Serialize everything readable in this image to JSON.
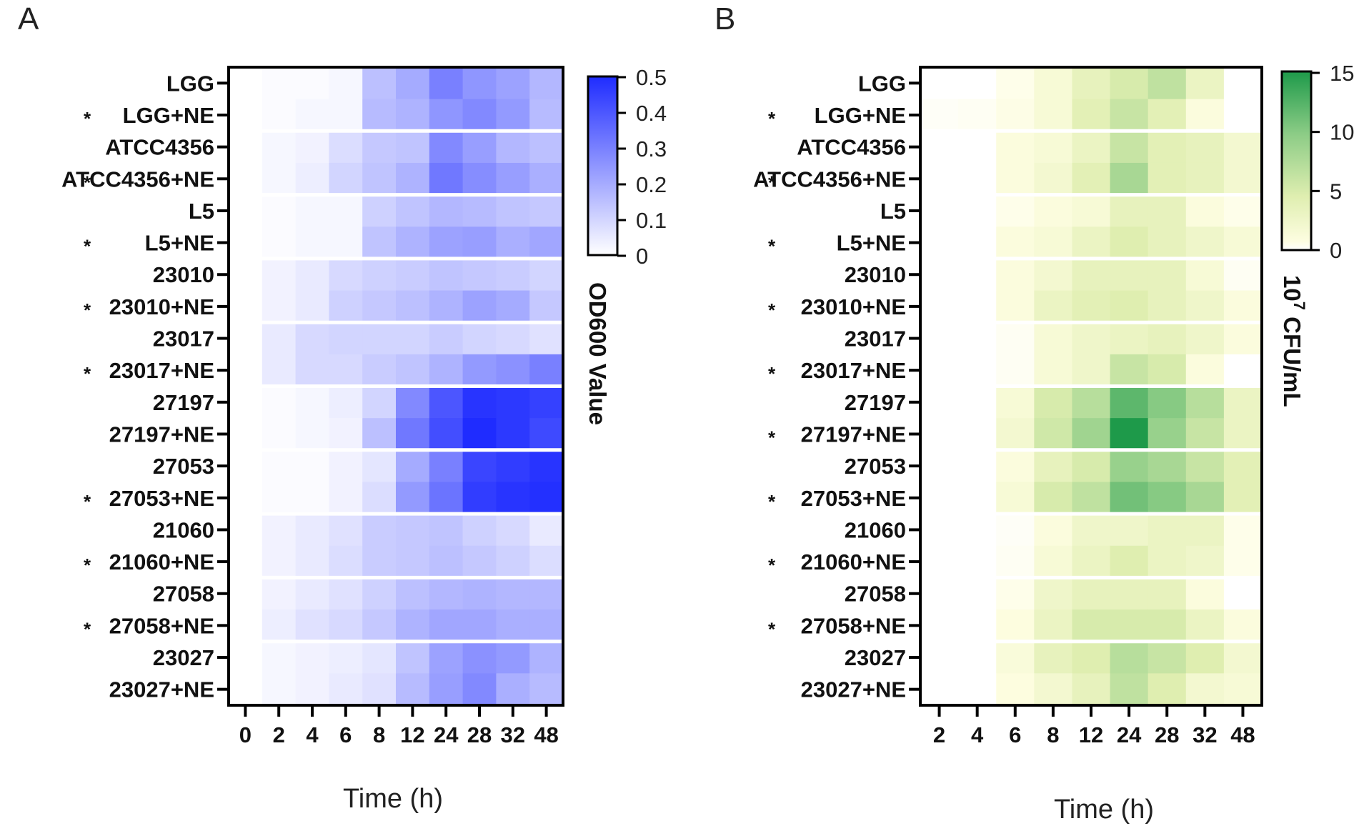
{
  "figure": {
    "panel_labels": [
      "A",
      "B"
    ]
  },
  "colors": {
    "blue_max": "#1f2cff",
    "green_max": "#1e9a4a",
    "green_mid": "#dfeeb0",
    "green_min": "#ffffff",
    "frame": "#000000",
    "separator": "#ffffff"
  },
  "chart_data": [
    {
      "type": "heatmap",
      "panel": "A",
      "xlabel": "Time (h)",
      "x": [
        "0",
        "2",
        "4",
        "6",
        "8",
        "12",
        "24",
        "28",
        "32",
        "48"
      ],
      "rows": [
        "LGG",
        "LGG+NE",
        "ATCC4356",
        "ATCC4356+NE",
        "L5",
        "L5+NE",
        "23010",
        "23010+NE",
        "23017",
        "23017+NE",
        "27197",
        "27197+NE",
        "27053",
        "27053+NE",
        "21060",
        "21060+NE",
        "27058",
        "27058+NE",
        "23027",
        "23027+NE"
      ],
      "significant": [
        false,
        true,
        false,
        true,
        false,
        true,
        false,
        true,
        false,
        true,
        false,
        false,
        false,
        true,
        false,
        true,
        false,
        true,
        false,
        false
      ],
      "star_symbol": "*",
      "colorbar": {
        "title": "OD600 Value",
        "min": 0,
        "max": 0.5,
        "ticks": [
          "0.5",
          "0.4",
          "0.3",
          "0.2",
          "0.1",
          "0"
        ]
      },
      "values": [
        [
          0.0,
          0.01,
          0.01,
          0.02,
          0.15,
          0.2,
          0.3,
          0.25,
          0.22,
          0.17
        ],
        [
          0.0,
          0.01,
          0.02,
          0.02,
          0.16,
          0.18,
          0.25,
          0.28,
          0.24,
          0.16
        ],
        [
          0.0,
          0.02,
          0.03,
          0.08,
          0.13,
          0.14,
          0.28,
          0.23,
          0.17,
          0.15
        ],
        [
          0.0,
          0.02,
          0.04,
          0.1,
          0.14,
          0.18,
          0.32,
          0.27,
          0.23,
          0.19
        ],
        [
          0.0,
          0.01,
          0.02,
          0.02,
          0.11,
          0.14,
          0.17,
          0.16,
          0.14,
          0.13
        ],
        [
          0.0,
          0.01,
          0.02,
          0.02,
          0.14,
          0.18,
          0.22,
          0.23,
          0.19,
          0.21
        ],
        [
          0.0,
          0.03,
          0.05,
          0.09,
          0.11,
          0.12,
          0.14,
          0.13,
          0.12,
          0.1
        ],
        [
          0.0,
          0.03,
          0.05,
          0.11,
          0.13,
          0.15,
          0.18,
          0.22,
          0.2,
          0.13
        ],
        [
          0.0,
          0.05,
          0.09,
          0.1,
          0.1,
          0.1,
          0.12,
          0.1,
          0.09,
          0.07
        ],
        [
          0.0,
          0.05,
          0.09,
          0.09,
          0.12,
          0.14,
          0.18,
          0.24,
          0.26,
          0.3
        ],
        [
          0.0,
          0.01,
          0.02,
          0.04,
          0.1,
          0.28,
          0.4,
          0.48,
          0.47,
          0.45
        ],
        [
          0.0,
          0.01,
          0.02,
          0.03,
          0.15,
          0.32,
          0.42,
          0.5,
          0.47,
          0.43
        ],
        [
          0.0,
          0.01,
          0.01,
          0.03,
          0.06,
          0.2,
          0.3,
          0.44,
          0.46,
          0.48
        ],
        [
          0.0,
          0.01,
          0.01,
          0.03,
          0.08,
          0.24,
          0.33,
          0.46,
          0.48,
          0.49
        ],
        [
          0.0,
          0.03,
          0.05,
          0.07,
          0.12,
          0.13,
          0.14,
          0.11,
          0.09,
          0.05
        ],
        [
          0.0,
          0.03,
          0.05,
          0.08,
          0.12,
          0.13,
          0.15,
          0.13,
          0.11,
          0.08
        ],
        [
          0.0,
          0.03,
          0.05,
          0.07,
          0.11,
          0.15,
          0.17,
          0.18,
          0.17,
          0.17
        ],
        [
          0.0,
          0.04,
          0.07,
          0.09,
          0.13,
          0.18,
          0.21,
          0.21,
          0.19,
          0.19
        ],
        [
          0.0,
          0.02,
          0.03,
          0.04,
          0.06,
          0.14,
          0.22,
          0.26,
          0.24,
          0.18
        ],
        [
          0.0,
          0.02,
          0.03,
          0.05,
          0.07,
          0.16,
          0.23,
          0.28,
          0.19,
          0.16
        ]
      ]
    },
    {
      "type": "heatmap",
      "panel": "B",
      "xlabel": "Time (h)",
      "x": [
        "2",
        "4",
        "6",
        "8",
        "12",
        "24",
        "28",
        "32",
        "48"
      ],
      "rows": [
        "LGG",
        "LGG+NE",
        "ATCC4356",
        "ATCC4356+NE",
        "L5",
        "L5+NE",
        "23010",
        "23010+NE",
        "23017",
        "23017+NE",
        "27197",
        "27197+NE",
        "27053",
        "27053+NE",
        "21060",
        "21060+NE",
        "27058",
        "27058+NE",
        "23027",
        "23027+NE"
      ],
      "significant": [
        false,
        true,
        false,
        true,
        false,
        true,
        false,
        true,
        false,
        true,
        false,
        true,
        false,
        true,
        false,
        true,
        false,
        true,
        false,
        false
      ],
      "star_symbol": "*",
      "colorbar": {
        "title_base": "10",
        "title_exp": "7",
        "title_rest": " CFU/mL",
        "min": 0,
        "max": 15,
        "ticks": [
          "15",
          "10",
          "5",
          "0"
        ]
      },
      "values": [
        [
          0.0,
          0.0,
          0.5,
          1.5,
          3.5,
          5.0,
          6.5,
          3.0,
          0.0
        ],
        [
          0.2,
          0.3,
          0.6,
          1.5,
          4.0,
          6.0,
          4.0,
          1.0,
          0.0
        ],
        [
          0.0,
          0.0,
          1.0,
          1.5,
          3.0,
          6.0,
          4.0,
          3.5,
          2.0
        ],
        [
          0.0,
          0.0,
          1.0,
          2.0,
          4.0,
          8.0,
          4.0,
          3.5,
          2.0
        ],
        [
          0.0,
          0.0,
          0.5,
          1.0,
          1.5,
          3.5,
          3.5,
          1.0,
          0.5
        ],
        [
          0.0,
          0.0,
          1.0,
          1.5,
          3.0,
          4.5,
          3.5,
          2.5,
          1.5
        ],
        [
          0.0,
          0.0,
          1.0,
          2.0,
          3.5,
          3.5,
          3.5,
          1.5,
          0.3
        ],
        [
          0.0,
          0.0,
          1.0,
          3.0,
          4.0,
          4.5,
          3.5,
          2.5,
          1.0
        ],
        [
          0.0,
          0.0,
          0.3,
          1.5,
          2.5,
          3.0,
          3.5,
          2.5,
          1.0
        ],
        [
          0.0,
          0.0,
          0.3,
          1.5,
          2.5,
          6.0,
          5.0,
          1.0,
          0.0
        ],
        [
          0.0,
          0.0,
          1.5,
          5.0,
          7.0,
          12.0,
          10.0,
          7.0,
          3.0
        ],
        [
          0.0,
          0.0,
          2.0,
          5.5,
          8.5,
          15.0,
          9.0,
          6.0,
          3.0
        ],
        [
          0.0,
          0.0,
          1.0,
          3.5,
          5.0,
          9.0,
          8.0,
          6.0,
          4.0
        ],
        [
          0.0,
          0.0,
          1.5,
          5.0,
          6.5,
          11.0,
          10.0,
          8.0,
          4.0
        ],
        [
          0.0,
          0.0,
          0.2,
          1.0,
          2.5,
          2.5,
          3.0,
          3.0,
          0.5
        ],
        [
          0.0,
          0.0,
          0.3,
          1.5,
          3.0,
          4.5,
          3.0,
          2.5,
          0.5
        ],
        [
          0.0,
          0.0,
          0.5,
          2.5,
          3.5,
          3.5,
          3.5,
          1.0,
          0.0
        ],
        [
          0.0,
          0.0,
          0.8,
          3.0,
          5.0,
          5.0,
          5.0,
          3.0,
          1.0
        ],
        [
          0.0,
          0.0,
          1.2,
          3.5,
          4.5,
          7.0,
          6.0,
          4.5,
          2.0
        ],
        [
          0.0,
          0.0,
          0.8,
          2.0,
          3.5,
          6.5,
          4.5,
          2.0,
          1.5
        ]
      ]
    }
  ]
}
